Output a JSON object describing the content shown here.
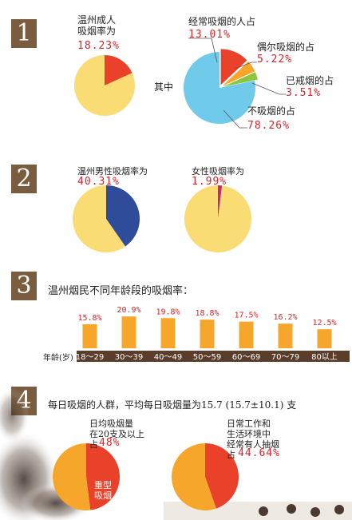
{
  "colors": {
    "red": "#e9412a",
    "yellow": "#f9dc74",
    "orange": "#f7a62c",
    "green": "#8cc63f",
    "blue": "#6fcbe9",
    "navy": "#2f4c9b",
    "magenta": "#c8287c",
    "brown": "#7a5c3f",
    "accent_text": "#d8232a"
  },
  "section1": {
    "badge": "1",
    "left_label": "温州成人\n吸烟率为",
    "left_value": "18.23%",
    "middle_label": "其中",
    "label_regular": "经常吸烟的人占",
    "value_regular": "13.01%",
    "label_occasional": "偶尔吸烟的占",
    "value_occasional": "5.22%",
    "label_quit": "已戒烟的占",
    "value_quit": "3.51%",
    "label_never": "不吸烟的占",
    "value_never": "78.26%"
  },
  "section2": {
    "badge": "2",
    "male_label": "温州男性吸烟率为",
    "male_value": "40.31%",
    "female_label": "女性吸烟率为",
    "female_value": "1.99%"
  },
  "section3": {
    "badge": "3",
    "title": "温州烟民不同年龄段的吸烟率：",
    "axis_title": "年龄(岁)"
  },
  "section4": {
    "badge": "4",
    "title": "每日吸烟的人群，平均每日吸烟量为15.7 (15.7±10.1) 支",
    "left_label": "日均吸烟量\n在20支及以上\n占",
    "left_value": "48%",
    "left_inner": "重型\n吸烟",
    "right_label": "日常工作和\n生活环境中\n经常有人抽烟\n占",
    "right_value": "44.64%"
  },
  "chart_data": [
    {
      "type": "pie",
      "labels": [
        "吸烟",
        "不吸烟"
      ],
      "values": [
        18.23,
        81.77
      ]
    },
    {
      "type": "pie",
      "labels": [
        "经常吸烟的人",
        "偶尔吸烟的",
        "已戒烟的",
        "不吸烟的"
      ],
      "values": [
        13.01,
        5.22,
        3.51,
        78.26
      ]
    },
    {
      "type": "pie",
      "labels": [
        "男性吸烟",
        "男性不吸烟"
      ],
      "values": [
        40.31,
        59.69
      ]
    },
    {
      "type": "pie",
      "labels": [
        "女性吸烟",
        "女性不吸烟"
      ],
      "values": [
        1.99,
        98.01
      ]
    },
    {
      "type": "bar",
      "categories": [
        "18～29",
        "30～39",
        "40～49",
        "50～59",
        "60～69",
        "70～79",
        "80以上"
      ],
      "values": [
        15.8,
        20.9,
        19.8,
        18.8,
        17.5,
        16.2,
        12.5
      ],
      "value_labels": [
        "15.8%",
        "20.9%",
        "19.8%",
        "18.8%",
        "17.5%",
        "16.2%",
        "12.5%"
      ],
      "xlabel": "年龄(岁)"
    },
    {
      "type": "pie",
      "labels": [
        "日均吸烟量在20支及以上",
        "其他"
      ],
      "values": [
        48,
        52
      ]
    },
    {
      "type": "pie",
      "labels": [
        "经常有人抽烟",
        "其他"
      ],
      "values": [
        44.64,
        55.36
      ]
    }
  ]
}
